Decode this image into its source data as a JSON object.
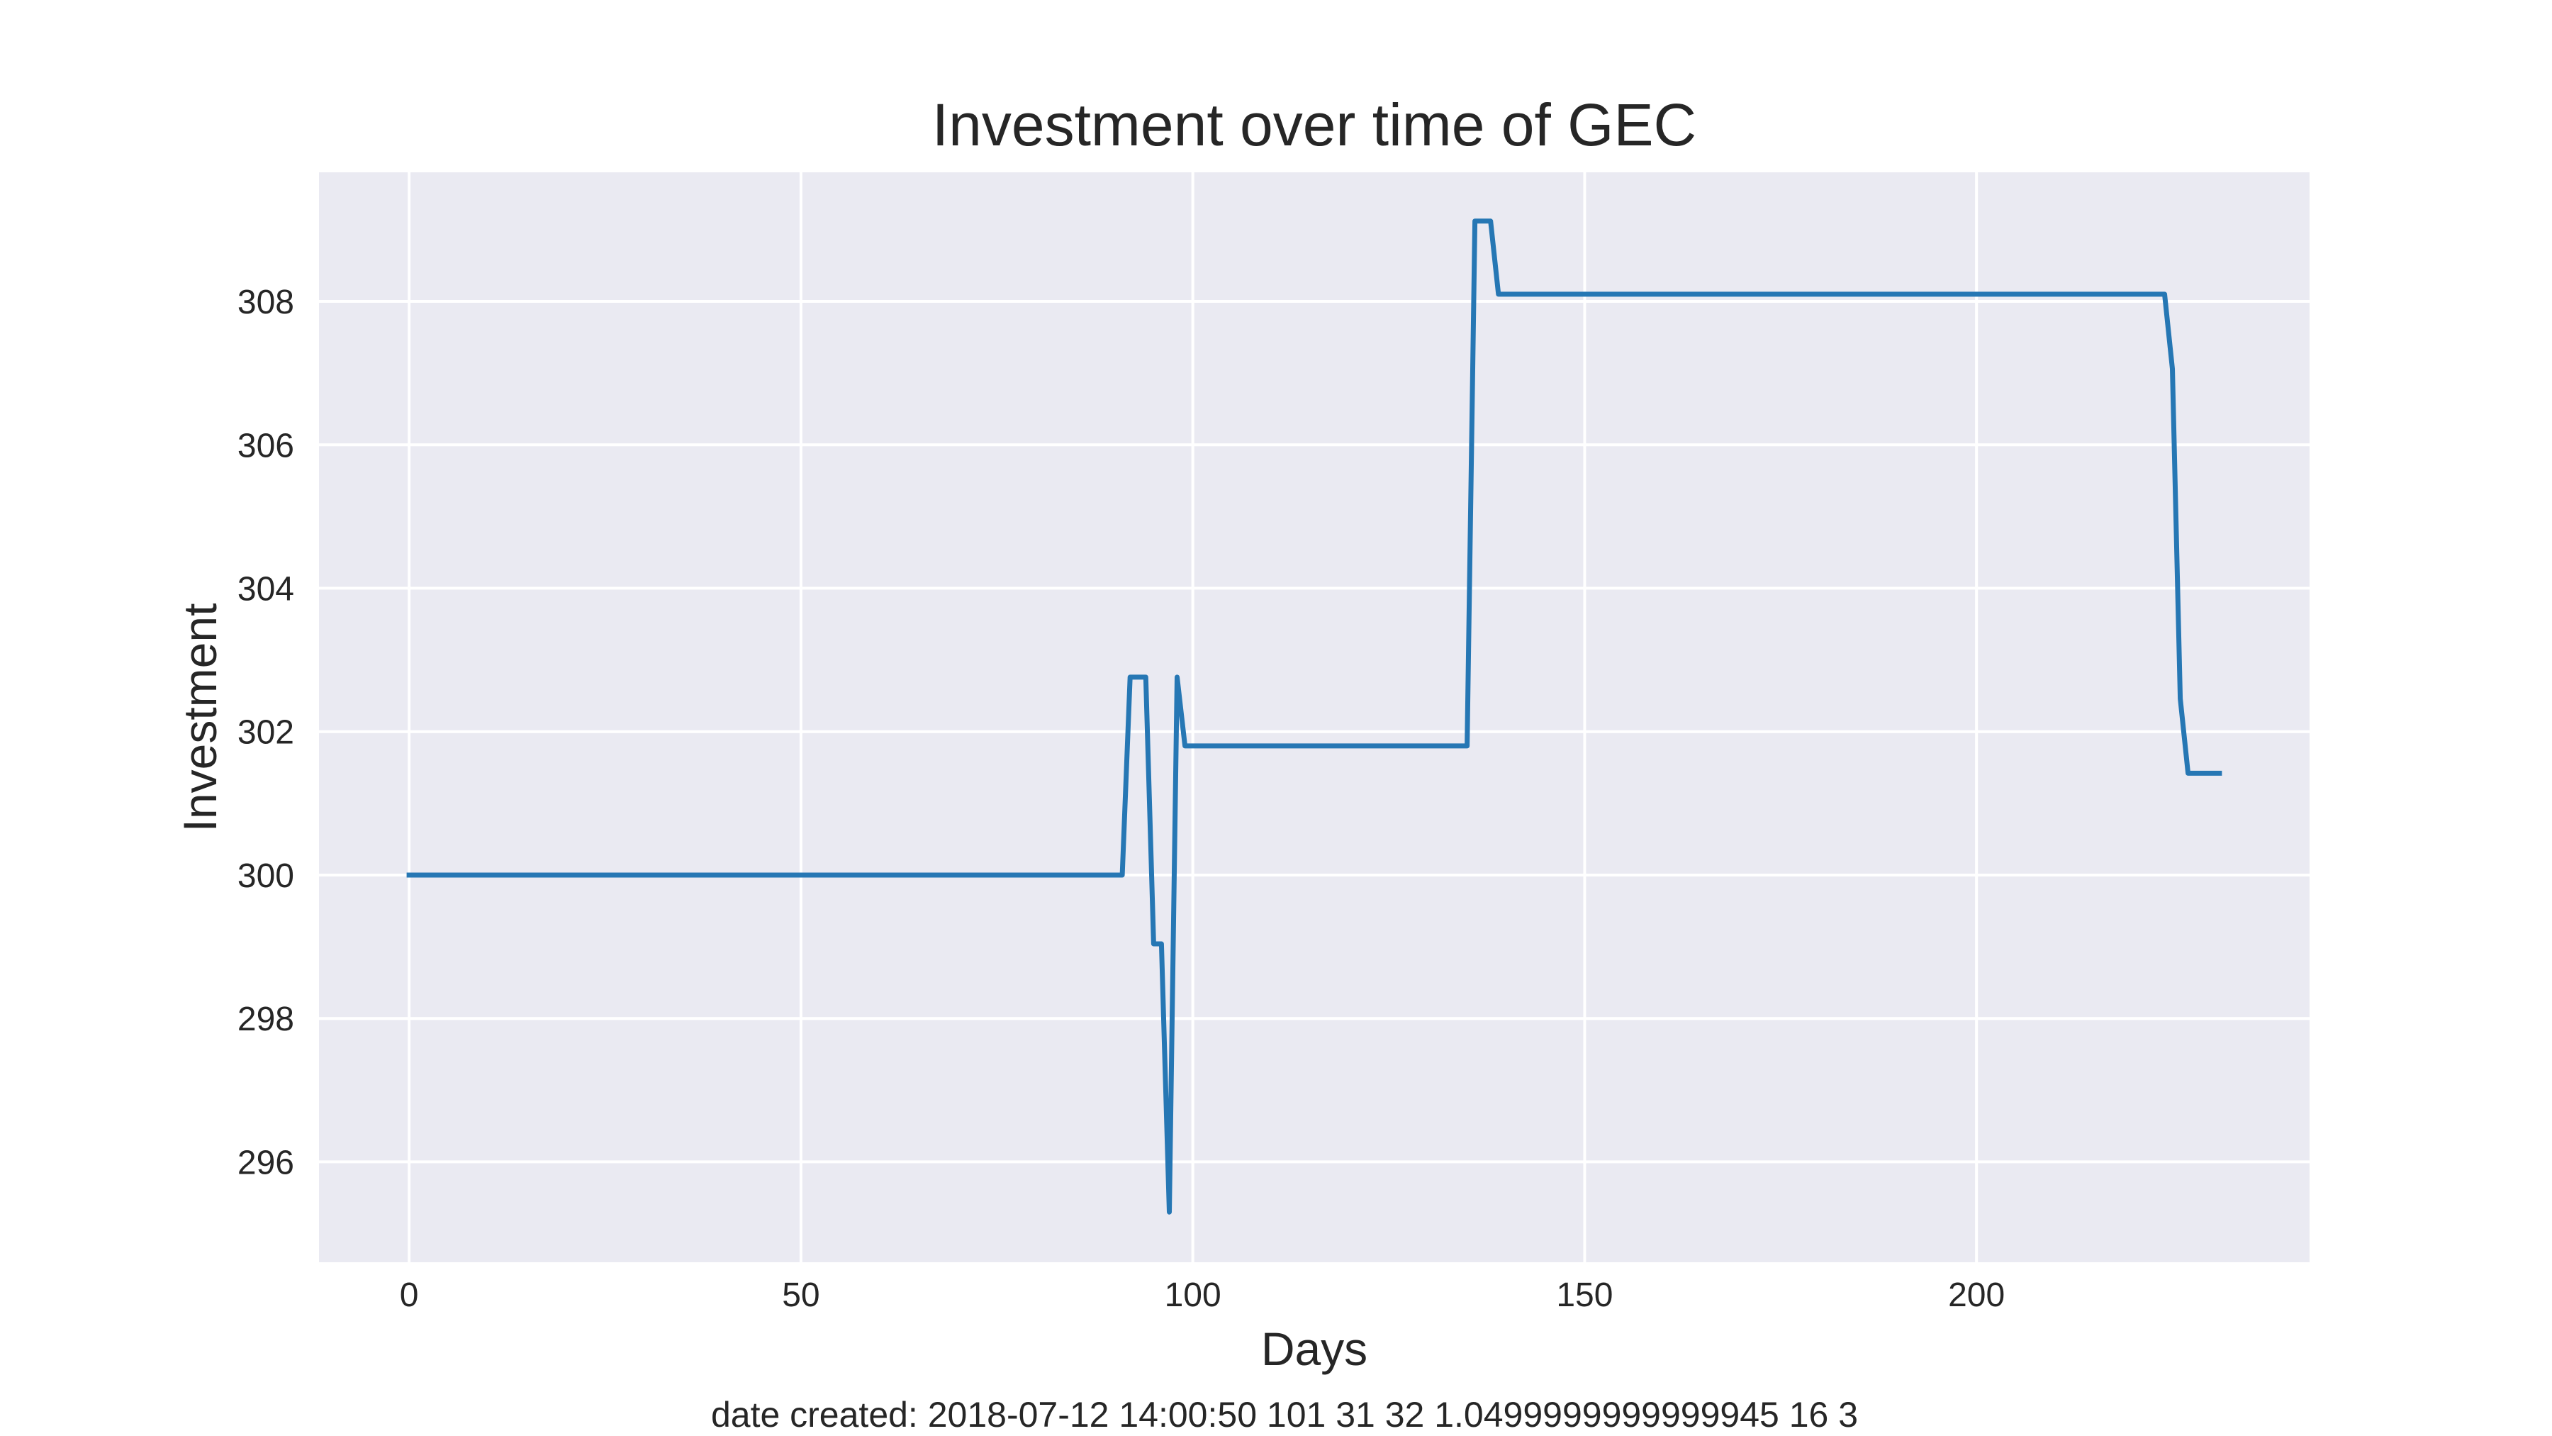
{
  "colors": {
    "plot_background": "#eaeaf2",
    "grid": "#ffffff",
    "line": "#2677b4",
    "text": "#262626"
  },
  "caption": "date created: 2018-07-12 14:00:50 101 31 32 1.0499999999999945 16 3",
  "chart_data": {
    "type": "line",
    "title": "Investment over time of GEC",
    "xlabel": "Days",
    "ylabel": "Investment",
    "xlim": [
      -11.5,
      242.5
    ],
    "ylim": [
      294.6,
      309.8
    ],
    "xticks": [
      0,
      50,
      100,
      150,
      200
    ],
    "yticks": [
      296,
      298,
      300,
      302,
      304,
      306,
      308
    ],
    "grid": true,
    "series": [
      {
        "values": [
          [
            0,
            300.0
          ],
          [
            91,
            300.0
          ],
          [
            92,
            302.76
          ],
          [
            94,
            302.76
          ],
          [
            95,
            299.04
          ],
          [
            96,
            299.04
          ],
          [
            97,
            295.3
          ],
          [
            98,
            302.76
          ],
          [
            99,
            301.8
          ],
          [
            135,
            301.8
          ],
          [
            136,
            309.12
          ],
          [
            138,
            309.12
          ],
          [
            139,
            308.1
          ],
          [
            224,
            308.1
          ],
          [
            225,
            307.06
          ],
          [
            226,
            302.46
          ],
          [
            227,
            301.42
          ],
          [
            231,
            301.42
          ]
        ]
      }
    ]
  }
}
